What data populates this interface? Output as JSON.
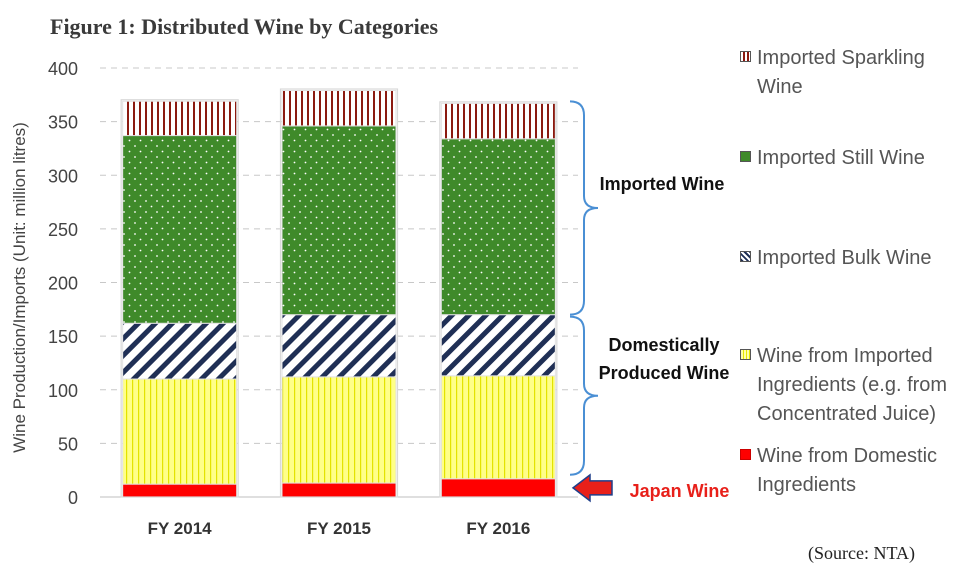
{
  "chart_data": {
    "type": "bar",
    "stacked": true,
    "title": "Figure 1:  Distributed Wine by Categories",
    "ylabel": "Wine Production/Imports (Unit:  million litres)",
    "xlabel": "",
    "ylim": [
      0,
      400
    ],
    "yticks": [
      0,
      50,
      100,
      150,
      200,
      250,
      300,
      350,
      400
    ],
    "grid": true,
    "legend_position": "right",
    "categories": [
      "FY 2014",
      "FY 2015",
      "FY 2016"
    ],
    "series": [
      {
        "name": "Wine from Domestic Ingredients",
        "values": [
          12,
          13,
          17
        ],
        "color": "#ff0000",
        "pattern": "solid"
      },
      {
        "name": "Wine from Imported Ingredients (e.g. from Concentrated Juice)",
        "values": [
          98,
          99,
          96
        ],
        "color": "#ffff66",
        "pattern": "vertical-lines"
      },
      {
        "name": "Imported Bulk Wine",
        "values": [
          52,
          58,
          57
        ],
        "color": "#1f2f55",
        "pattern": "diagonal-stripes"
      },
      {
        "name": "Imported Still Wine",
        "values": [
          175,
          176,
          164
        ],
        "color": "#3f8a2a",
        "pattern": "dots"
      },
      {
        "name": "Imported Sparkling Wine",
        "values": [
          32,
          33,
          33
        ],
        "color": "#8b1a10",
        "pattern": "vertical-lines"
      }
    ],
    "legend": [
      "Imported Sparkling Wine",
      "Imported Still Wine",
      "Imported Bulk Wine",
      "Wine from Imported Ingredients (e.g. from Concentrated Juice)",
      "Wine from Domestic Ingredients"
    ],
    "annotations": {
      "imported": "Imported Wine",
      "domestic": "Domestically Produced Wine",
      "japan_wine": "Japan Wine"
    },
    "annotation_color": "#e8201a",
    "bracket_color": "#4a8fd4",
    "source": "(Source: NTA)"
  }
}
